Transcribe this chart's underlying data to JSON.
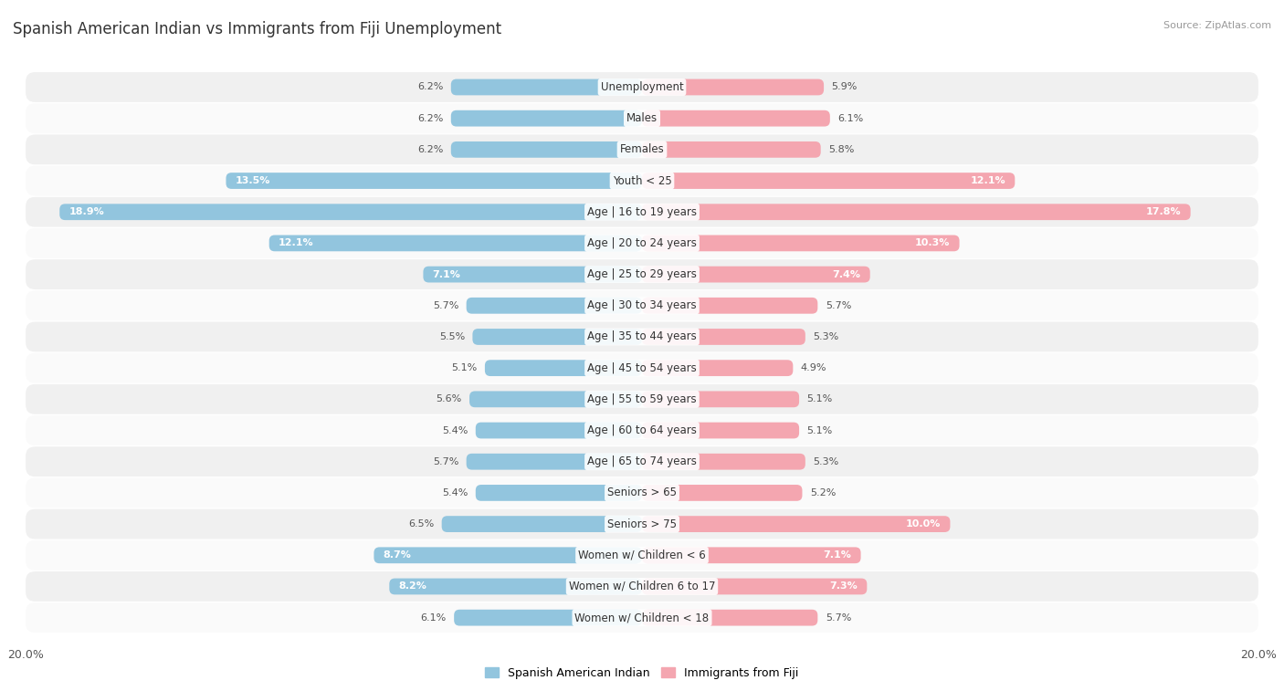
{
  "title": "Spanish American Indian vs Immigrants from Fiji Unemployment",
  "source": "Source: ZipAtlas.com",
  "categories": [
    "Unemployment",
    "Males",
    "Females",
    "Youth < 25",
    "Age | 16 to 19 years",
    "Age | 20 to 24 years",
    "Age | 25 to 29 years",
    "Age | 30 to 34 years",
    "Age | 35 to 44 years",
    "Age | 45 to 54 years",
    "Age | 55 to 59 years",
    "Age | 60 to 64 years",
    "Age | 65 to 74 years",
    "Seniors > 65",
    "Seniors > 75",
    "Women w/ Children < 6",
    "Women w/ Children 6 to 17",
    "Women w/ Children < 18"
  ],
  "left_values": [
    6.2,
    6.2,
    6.2,
    13.5,
    18.9,
    12.1,
    7.1,
    5.7,
    5.5,
    5.1,
    5.6,
    5.4,
    5.7,
    5.4,
    6.5,
    8.7,
    8.2,
    6.1
  ],
  "right_values": [
    5.9,
    6.1,
    5.8,
    12.1,
    17.8,
    10.3,
    7.4,
    5.7,
    5.3,
    4.9,
    5.1,
    5.1,
    5.3,
    5.2,
    10.0,
    7.1,
    7.3,
    5.7
  ],
  "left_color": "#92c5de",
  "right_color": "#f4a6b0",
  "left_label": "Spanish American Indian",
  "right_label": "Immigrants from Fiji",
  "max_val": 20.0,
  "background_color": "#ffffff",
  "row_color_odd": "#f0f0f0",
  "row_color_even": "#fafafa",
  "title_fontsize": 12,
  "label_fontsize": 8.5,
  "value_fontsize": 8,
  "axis_fontsize": 9
}
